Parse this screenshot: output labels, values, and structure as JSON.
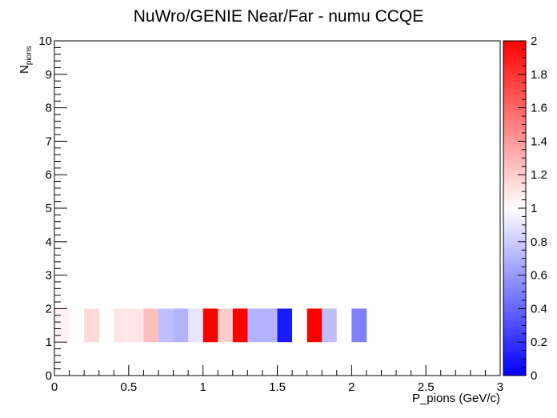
{
  "chart_data": {
    "type": "heatmap",
    "title": "NuWro/GENIE Near/Far - numu CCQE",
    "xlabel": "P_pions (GeV/c)",
    "ylabel_main": "N",
    "ylabel_sub": "pions",
    "xlim": [
      0,
      3
    ],
    "ylim": [
      0,
      10
    ],
    "zlim": [
      0,
      2
    ],
    "grid": false,
    "x_ticks": [
      "0",
      "0.5",
      "1",
      "1.5",
      "2",
      "2.5",
      "3"
    ],
    "y_ticks": [
      "0",
      "1",
      "2",
      "3",
      "4",
      "5",
      "6",
      "7",
      "8",
      "9",
      "10"
    ],
    "z_ticks": [
      "0",
      "0.2",
      "0.4",
      "0.6",
      "0.8",
      "1",
      "1.2",
      "1.4",
      "1.6",
      "1.8",
      "2"
    ],
    "bin_width": 0.1,
    "row_y": [
      1,
      2
    ],
    "row_x_start": 0.0,
    "row_values": [
      1.05,
      1.0,
      1.15,
      1.0,
      1.1,
      1.1,
      1.25,
      0.75,
      0.7,
      0.9,
      2.0,
      1.2,
      2.0,
      0.7,
      0.7,
      0.1,
      1.0,
      2.0,
      0.75,
      1.0,
      0.5
    ],
    "base_row_y": [
      0,
      1
    ],
    "base_row_x": [
      0.0,
      0.1
    ],
    "base_row_value": 1.0,
    "palette_low": "#0000ff",
    "palette_mid": "#ffffff",
    "palette_high": "#ff0000"
  }
}
